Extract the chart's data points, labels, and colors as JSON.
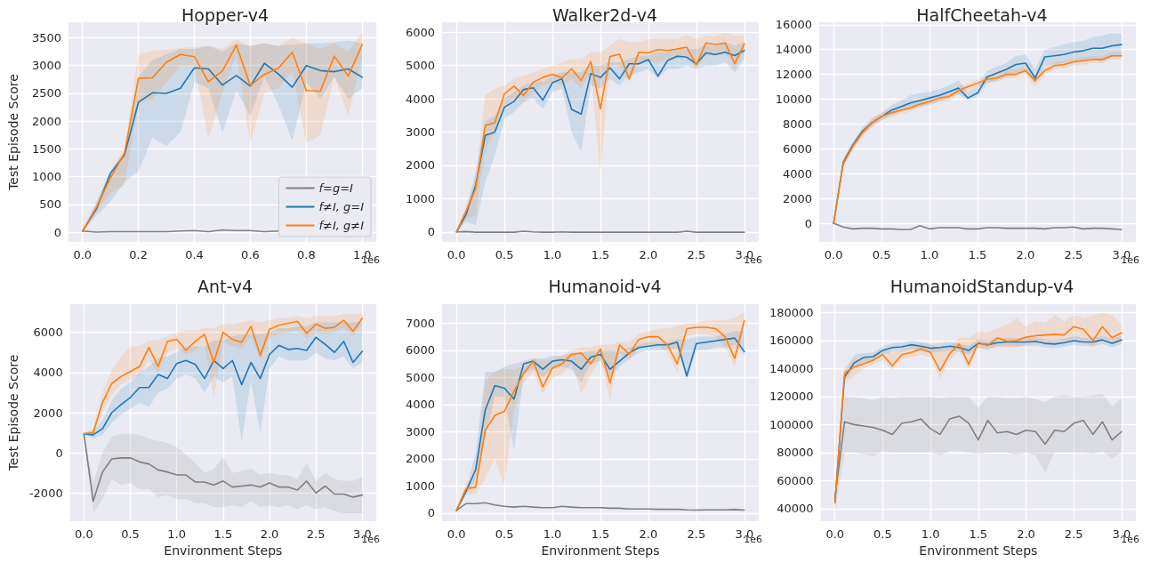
{
  "chart_data": [
    {
      "type": "line",
      "title": "Hopper-v4",
      "ylabel": "Test Episode Score",
      "annotations": [
        "1e6"
      ],
      "legend": "bottom right",
      "grid": true,
      "marker": "none",
      "line_style": "solid",
      "xlim": [
        -0.05,
        1.05
      ],
      "xticks": [
        {
          "value": 0,
          "label": "0.0"
        },
        {
          "value": 0.2,
          "label": "0.2"
        },
        {
          "value": 0.4,
          "label": "0.4"
        },
        {
          "value": 0.6,
          "label": "0.6"
        },
        {
          "value": 0.8,
          "label": "0.8"
        },
        {
          "value": 1,
          "label": "1.0"
        }
      ],
      "ylim": [
        -175,
        3780
      ],
      "yticks": [
        0,
        500,
        1000,
        1500,
        2000,
        2500,
        3000,
        3500
      ],
      "x": [
        0,
        0.05,
        0.1,
        0.15,
        0.2,
        0.25,
        0.3,
        0.35,
        0.4,
        0.45,
        0.5,
        0.55,
        0.6,
        0.65,
        0.7,
        0.75,
        0.8,
        0.85,
        0.9,
        0.95,
        1
      ],
      "series": [
        {
          "name": "f=g=I",
          "color": "#7f7f7f",
          "values": [
            20,
            0,
            10,
            10,
            10,
            10,
            10,
            20,
            30,
            10,
            40,
            30,
            30,
            10,
            20,
            null,
            null,
            null,
            null,
            null,
            null
          ]
        },
        {
          "name": "f≠I, g=I",
          "color": "#1f77b4",
          "values": [
            20,
            420,
            1060,
            1390,
            2340,
            2510,
            2500,
            2590,
            2960,
            2940,
            2650,
            2820,
            2630,
            3040,
            2850,
            2610,
            3000,
            2910,
            2890,
            2940,
            2790
          ],
          "lower": [
            0,
            300,
            550,
            900,
            1100,
            1700,
            1550,
            1800,
            2700,
            2600,
            1800,
            2550,
            2100,
            2800,
            2300,
            1650,
            2700,
            2400,
            2800,
            2400,
            2600
          ],
          "upper": [
            40,
            550,
            1100,
            1450,
            2800,
            3100,
            3200,
            3300,
            3300,
            3350,
            3250,
            3400,
            3350,
            3400,
            3350,
            3380,
            3400,
            3400,
            3420,
            3450,
            3400
          ]
        },
        {
          "name": "f≠I, g≠I",
          "color": "#ff7f0e",
          "values": [
            20,
            450,
            980,
            1420,
            2770,
            2780,
            3060,
            3200,
            3160,
            2710,
            2900,
            3370,
            2640,
            2840,
            2950,
            3240,
            2550,
            2540,
            3170,
            2810,
            3380
          ],
          "lower": [
            0,
            350,
            700,
            850,
            2300,
            2400,
            2700,
            3000,
            3000,
            1700,
            2500,
            3200,
            1600,
            2500,
            2600,
            2900,
            1600,
            1750,
            2800,
            2100,
            3150
          ],
          "upper": [
            40,
            500,
            1100,
            1500,
            3200,
            3270,
            3280,
            3320,
            3330,
            3360,
            3300,
            3470,
            3350,
            3400,
            3350,
            3500,
            3400,
            3300,
            3400,
            3250,
            3600
          ]
        }
      ]
    },
    {
      "type": "line",
      "title": "Walker2d-v4",
      "annotations": [
        "1e6"
      ],
      "grid": true,
      "marker": "none",
      "line_style": "solid",
      "xlim": [
        -0.15,
        3.15
      ],
      "xticks": [
        {
          "value": 0,
          "label": "0.0"
        },
        {
          "value": 0.5,
          "label": "0.5"
        },
        {
          "value": 1,
          "label": "1.0"
        },
        {
          "value": 1.5,
          "label": "1.5"
        },
        {
          "value": 2,
          "label": "2.0"
        },
        {
          "value": 2.5,
          "label": "2.5"
        },
        {
          "value": 3,
          "label": "3.0"
        }
      ],
      "ylim": [
        -300,
        6300
      ],
      "yticks": [
        0,
        1000,
        2000,
        3000,
        4000,
        5000,
        6000
      ],
      "x": [
        0,
        0.1,
        0.2,
        0.3,
        0.4,
        0.5,
        0.6,
        0.7,
        0.8,
        0.9,
        1,
        1.1,
        1.2,
        1.3,
        1.4,
        1.5,
        1.6,
        1.7,
        1.8,
        1.9,
        2,
        2.1,
        2.2,
        2.3,
        2.4,
        2.5,
        2.6,
        2.7,
        2.8,
        2.9,
        3
      ],
      "series": [
        {
          "color": "#7f7f7f",
          "values": [
            0,
            10,
            -10,
            -10,
            -10,
            -10,
            -10,
            20,
            0,
            -10,
            -10,
            0,
            -10,
            -10,
            -10,
            -10,
            -10,
            -10,
            -10,
            -10,
            -10,
            -10,
            -10,
            -10,
            20,
            -10,
            -10,
            -10,
            -10,
            -10,
            -10
          ]
        },
        {
          "color": "#1f77b4",
          "values": [
            0,
            520,
            1400,
            2900,
            3000,
            3750,
            3920,
            4280,
            4330,
            3960,
            4480,
            4600,
            3680,
            3540,
            4760,
            4640,
            4930,
            4600,
            5050,
            5050,
            5180,
            4680,
            5150,
            5280,
            5250,
            5050,
            5380,
            5330,
            5400,
            5300,
            5450
          ],
          "lower": [
            0,
            300,
            200,
            1500,
            2300,
            3400,
            3600,
            3900,
            4000,
            3700,
            4200,
            4300,
            3000,
            2400,
            4400,
            4300,
            4600,
            4400,
            4700,
            4800,
            4900,
            4600,
            4900,
            4900,
            5000,
            4900,
            5000,
            5000,
            5100,
            4800,
            5200
          ],
          "upper": [
            50,
            700,
            1800,
            3300,
            3500,
            4000,
            4200,
            4400,
            4500,
            4500,
            4700,
            4800,
            4800,
            4800,
            5000,
            5000,
            5100,
            5100,
            5200,
            5300,
            5300,
            5400,
            5400,
            5500,
            5500,
            5500,
            5600,
            5600,
            5700,
            5600,
            5700
          ]
        },
        {
          "color": "#ff7f0e",
          "values": [
            0,
            620,
            1300,
            3200,
            3280,
            4150,
            4380,
            4100,
            4500,
            4640,
            4740,
            4630,
            4900,
            4550,
            5120,
            3700,
            5270,
            5340,
            4600,
            5400,
            5380,
            5480,
            5450,
            5500,
            5550,
            5020,
            5680,
            5630,
            5680,
            5060,
            5650
          ],
          "lower": [
            0,
            400,
            500,
            2500,
            3000,
            3800,
            4000,
            3900,
            4200,
            4400,
            4500,
            4400,
            4600,
            4300,
            4800,
            1800,
            5000,
            5000,
            4500,
            5100,
            5100,
            5100,
            5200,
            5200,
            5300,
            4900,
            5300,
            5300,
            5400,
            4900,
            5400
          ],
          "upper": [
            50,
            750,
            1600,
            4100,
            4300,
            4400,
            4600,
            4700,
            4800,
            4900,
            5000,
            5100,
            5200,
            5200,
            5400,
            5400,
            5600,
            5800,
            5700,
            5700,
            5800,
            5800,
            5800,
            5800,
            5900,
            5800,
            5900,
            5900,
            6000,
            5900,
            5900
          ]
        }
      ]
    },
    {
      "type": "line",
      "title": "HalfCheetah-v4",
      "annotations": [
        "1e6"
      ],
      "grid": true,
      "marker": "none",
      "line_style": "solid",
      "xlim": [
        -0.15,
        3.15
      ],
      "xticks": [
        {
          "value": 0,
          "label": "0.0"
        },
        {
          "value": 0.5,
          "label": "0.5"
        },
        {
          "value": 1,
          "label": "1.0"
        },
        {
          "value": 1.5,
          "label": "1.5"
        },
        {
          "value": 2,
          "label": "2.0"
        },
        {
          "value": 2.5,
          "label": "2.5"
        },
        {
          "value": 3,
          "label": "3.0"
        }
      ],
      "ylim": [
        -1500,
        16200
      ],
      "yticks": [
        0,
        2000,
        4000,
        6000,
        8000,
        10000,
        12000,
        14000,
        16000
      ],
      "x": [
        0,
        0.1,
        0.2,
        0.3,
        0.4,
        0.5,
        0.6,
        0.7,
        0.8,
        0.9,
        1,
        1.1,
        1.2,
        1.3,
        1.4,
        1.5,
        1.6,
        1.7,
        1.8,
        1.9,
        2,
        2.1,
        2.2,
        2.3,
        2.4,
        2.5,
        2.6,
        2.7,
        2.8,
        2.9,
        3
      ],
      "series": [
        {
          "color": "#7f7f7f",
          "values": [
            0,
            -300,
            -450,
            -400,
            -400,
            -450,
            -450,
            -500,
            -500,
            -200,
            -450,
            -350,
            -350,
            -350,
            -450,
            -450,
            -350,
            -350,
            -400,
            -400,
            -400,
            -400,
            -450,
            -350,
            -350,
            -300,
            -450,
            -400,
            -400,
            -450,
            -500
          ]
        },
        {
          "color": "#1f77b4",
          "values": [
            0,
            4900,
            6300,
            7400,
            8100,
            8600,
            9100,
            9400,
            9700,
            9900,
            10100,
            10300,
            10600,
            10900,
            10100,
            10500,
            11800,
            12100,
            12400,
            12800,
            12900,
            11700,
            13400,
            13500,
            13600,
            13800,
            13900,
            14100,
            14100,
            14300,
            14400
          ],
          "lower": [
            0,
            4600,
            6000,
            7100,
            7800,
            8300,
            8700,
            9000,
            9200,
            9400,
            9600,
            9800,
            10100,
            10400,
            9900,
            10200,
            11300,
            11500,
            11800,
            12100,
            12200,
            11300,
            12700,
            12800,
            12900,
            13000,
            13100,
            13200,
            13000,
            13400,
            13400
          ],
          "upper": [
            0,
            5200,
            6600,
            7700,
            8400,
            8900,
            9500,
            9900,
            10300,
            10500,
            10600,
            10800,
            11100,
            11500,
            10600,
            11000,
            12300,
            12600,
            12900,
            13500,
            13600,
            12400,
            14000,
            14200,
            14400,
            14600,
            14700,
            15000,
            15100,
            15300,
            15300
          ]
        },
        {
          "color": "#ff7f0e",
          "values": [
            0,
            4800,
            6200,
            7300,
            8100,
            8600,
            8900,
            9100,
            9300,
            9600,
            9800,
            10100,
            10200,
            10700,
            11000,
            11300,
            11600,
            11700,
            12000,
            12000,
            12300,
            11500,
            12300,
            12700,
            12800,
            13000,
            13100,
            13200,
            13200,
            13500,
            13500
          ],
          "lower": [
            0,
            4500,
            5900,
            7000,
            7800,
            8300,
            8600,
            8800,
            9000,
            9300,
            9500,
            9800,
            9800,
            10400,
            10700,
            11000,
            11300,
            11400,
            11700,
            11700,
            12000,
            11000,
            12000,
            12400,
            12500,
            12700,
            12800,
            12900,
            12900,
            13200,
            13200
          ],
          "upper": [
            0,
            5100,
            6500,
            7600,
            8500,
            8900,
            9200,
            9400,
            9600,
            9900,
            10100,
            10400,
            10500,
            11000,
            11300,
            11600,
            11900,
            12100,
            12400,
            12400,
            12600,
            12000,
            12600,
            13000,
            13100,
            13300,
            13400,
            13500,
            13500,
            13800,
            13800
          ]
        }
      ]
    },
    {
      "type": "line",
      "title": "Ant-v4",
      "xlabel": "Environment Steps",
      "ylabel": "Test Episode Score",
      "annotations": [
        "1e6"
      ],
      "grid": true,
      "marker": "none",
      "line_style": "solid",
      "xlim": [
        -0.15,
        3.15
      ],
      "xticks": [
        {
          "value": 0,
          "label": "0.0"
        },
        {
          "value": 0.5,
          "label": "0.5"
        },
        {
          "value": 1,
          "label": "1.0"
        },
        {
          "value": 1.5,
          "label": "1.5"
        },
        {
          "value": 2,
          "label": "2.0"
        },
        {
          "value": 2.5,
          "label": "2.5"
        },
        {
          "value": 3,
          "label": "3.0"
        }
      ],
      "ylim": [
        -3400,
        7400
      ],
      "yticks": [
        -2000,
        0,
        2000,
        4000,
        6000
      ],
      "x": [
        0,
        0.1,
        0.2,
        0.3,
        0.4,
        0.5,
        0.6,
        0.7,
        0.8,
        0.9,
        1,
        1.1,
        1.2,
        1.3,
        1.4,
        1.5,
        1.6,
        1.7,
        1.8,
        1.9,
        2,
        2.1,
        2.2,
        2.3,
        2.4,
        2.5,
        2.6,
        2.7,
        2.8,
        2.9,
        3
      ],
      "series": [
        {
          "color": "#7f7f7f",
          "values": [
            950,
            -2400,
            -950,
            -300,
            -250,
            -250,
            -450,
            -550,
            -850,
            -950,
            -1100,
            -1100,
            -1450,
            -1450,
            -1600,
            -1400,
            -1700,
            -1650,
            -1600,
            -1700,
            -1500,
            -1700,
            -1700,
            -1850,
            -1400,
            -2000,
            -1650,
            -2050,
            -2050,
            -2200,
            -2100
          ],
          "lower": [
            900,
            -3000,
            -2300,
            -1300,
            -1600,
            -1500,
            -1800,
            -1800,
            -2200,
            -2100,
            -2300,
            -2300,
            -2500,
            -2500,
            -2700,
            -2700,
            -2600,
            -2700,
            -2400,
            -2700,
            -2600,
            -2700,
            -2600,
            -2800,
            -2600,
            -2800,
            -2700,
            -2900,
            -3000,
            -3000,
            -3000
          ],
          "upper": [
            1000,
            -1500,
            0,
            800,
            950,
            950,
            900,
            700,
            600,
            500,
            300,
            -100,
            -500,
            -1000,
            -800,
            -200,
            -1000,
            -900,
            -800,
            -1100,
            -1000,
            -1100,
            -1100,
            -1300,
            -500,
            -1400,
            -1000,
            -1300,
            -1400,
            -1400,
            -1200
          ]
        },
        {
          "color": "#1f77b4",
          "values": [
            950,
            900,
            1200,
            2000,
            2400,
            2750,
            3250,
            3250,
            3900,
            3700,
            4450,
            4600,
            4400,
            3700,
            4600,
            4200,
            4600,
            3400,
            4500,
            3700,
            4900,
            5350,
            5150,
            5200,
            5100,
            5750,
            5400,
            5000,
            5550,
            4500,
            5050
          ],
          "lower": [
            900,
            700,
            900,
            1500,
            1900,
            2200,
            2500,
            2300,
            3000,
            3200,
            3700,
            3900,
            3700,
            3000,
            3800,
            3500,
            3800,
            600,
            3600,
            1000,
            4200,
            4800,
            4600,
            4600,
            4600,
            5000,
            4700,
            4600,
            4800,
            4200,
            4500
          ],
          "upper": [
            1000,
            1100,
            1600,
            2600,
            3200,
            3500,
            4000,
            4300,
            4700,
            4800,
            5000,
            5300,
            5300,
            5300,
            5600,
            5600,
            5800,
            5900,
            5900,
            5900,
            6000,
            6200,
            6200,
            6300,
            6300,
            6500,
            6500,
            6500,
            6500,
            6500,
            6500
          ]
        },
        {
          "color": "#ff7f0e",
          "values": [
            960,
            1000,
            2500,
            3450,
            3800,
            4050,
            4300,
            5250,
            4300,
            5550,
            5650,
            5100,
            5550,
            5900,
            4500,
            6000,
            5650,
            5500,
            6300,
            4850,
            6150,
            6350,
            6450,
            6550,
            5950,
            6400,
            6200,
            6250,
            6600,
            6050,
            6700
          ],
          "lower": [
            900,
            800,
            2000,
            2900,
            3400,
            3600,
            3900,
            4600,
            4000,
            5000,
            5200,
            4900,
            5100,
            5400,
            2800,
            5500,
            5300,
            5200,
            5800,
            4600,
            5700,
            5900,
            6000,
            6100,
            5700,
            6000,
            5900,
            6000,
            6200,
            5800,
            6400
          ],
          "upper": [
            1000,
            1200,
            3000,
            4100,
            4800,
            5300,
            5300,
            5600,
            5600,
            5800,
            6000,
            6100,
            6100,
            6200,
            6200,
            6400,
            6400,
            6500,
            6600,
            6500,
            6600,
            6700,
            6700,
            6800,
            6700,
            6800,
            6800,
            6800,
            6900,
            6900,
            6900
          ]
        }
      ]
    },
    {
      "type": "line",
      "title": "Humanoid-v4",
      "xlabel": "Environment Steps",
      "annotations": [
        "1e6"
      ],
      "grid": true,
      "marker": "none",
      "line_style": "solid",
      "xlim": [
        -0.15,
        3.15
      ],
      "xticks": [
        {
          "value": 0,
          "label": "0.0"
        },
        {
          "value": 0.5,
          "label": "0.5"
        },
        {
          "value": 1,
          "label": "1.0"
        },
        {
          "value": 1.5,
          "label": "1.5"
        },
        {
          "value": 2,
          "label": "2.0"
        },
        {
          "value": 2.5,
          "label": "2.5"
        },
        {
          "value": 3,
          "label": "3.0"
        }
      ],
      "ylim": [
        -300,
        7700
      ],
      "yticks": [
        0,
        1000,
        2000,
        3000,
        4000,
        5000,
        6000,
        7000
      ],
      "x": [
        0,
        0.1,
        0.2,
        0.3,
        0.4,
        0.5,
        0.6,
        0.7,
        0.8,
        0.9,
        1,
        1.1,
        1.2,
        1.3,
        1.4,
        1.5,
        1.6,
        1.7,
        1.8,
        1.9,
        2,
        2.1,
        2.2,
        2.3,
        2.4,
        2.5,
        2.6,
        2.7,
        2.8,
        2.9,
        3
      ],
      "series": [
        {
          "color": "#7f7f7f",
          "values": [
            100,
            350,
            350,
            380,
            300,
            250,
            220,
            250,
            220,
            200,
            200,
            250,
            220,
            200,
            200,
            200,
            180,
            180,
            150,
            150,
            150,
            140,
            140,
            140,
            120,
            110,
            120,
            120,
            120,
            130,
            110
          ]
        },
        {
          "color": "#1f77b4",
          "values": [
            100,
            800,
            1600,
            3800,
            4700,
            4600,
            4200,
            5500,
            5600,
            5300,
            5600,
            5650,
            5600,
            5300,
            5750,
            5850,
            5300,
            5600,
            5900,
            6100,
            6150,
            6200,
            6200,
            6300,
            5050,
            6250,
            6300,
            6350,
            6400,
            6450,
            5950
          ],
          "lower": [
            100,
            700,
            1200,
            2800,
            4300,
            4300,
            2300,
            5100,
            5300,
            5000,
            5300,
            5400,
            5300,
            4800,
            5500,
            5600,
            5000,
            5400,
            5700,
            5900,
            6000,
            6000,
            6000,
            6100,
            4900,
            6000,
            6000,
            6100,
            6100,
            6200,
            5800
          ],
          "upper": [
            150,
            900,
            2200,
            5200,
            5200,
            5400,
            5500,
            5600,
            5700,
            5700,
            5800,
            5800,
            5900,
            5900,
            6000,
            6000,
            6000,
            6000,
            6100,
            6200,
            6300,
            6300,
            6300,
            6400,
            6400,
            6500,
            6500,
            6500,
            6600,
            6700,
            6700
          ]
        },
        {
          "color": "#ff7f0e",
          "values": [
            100,
            900,
            950,
            3050,
            3600,
            3750,
            4500,
            5150,
            5600,
            4650,
            5350,
            5500,
            5850,
            5900,
            5500,
            6050,
            4800,
            6200,
            5850,
            6400,
            6500,
            6500,
            6200,
            5500,
            6800,
            6850,
            6850,
            6800,
            6500,
            5700,
            7100
          ],
          "lower": [
            100,
            700,
            700,
            1300,
            2000,
            1000,
            3800,
            4800,
            5200,
            4400,
            5000,
            5100,
            5500,
            4400,
            5100,
            5700,
            4200,
            5900,
            5600,
            6100,
            6200,
            6200,
            5900,
            5200,
            6500,
            6600,
            6600,
            6500,
            6100,
            5400,
            6800
          ],
          "upper": [
            150,
            1100,
            1300,
            4900,
            5200,
            5300,
            5300,
            5400,
            5700,
            5600,
            5700,
            5800,
            6000,
            6100,
            6100,
            6200,
            6200,
            6300,
            6300,
            6600,
            6700,
            6800,
            6800,
            6900,
            7000,
            7000,
            7100,
            7100,
            7100,
            7200,
            7400
          ]
        }
      ]
    },
    {
      "type": "line",
      "title": "HumanoidStandup-v4",
      "xlabel": "Environment Steps",
      "annotations": [
        "1e6"
      ],
      "grid": true,
      "marker": "none",
      "line_style": "solid",
      "xlim": [
        -0.15,
        3.15
      ],
      "xticks": [
        {
          "value": 0,
          "label": "0.0"
        },
        {
          "value": 0.5,
          "label": "0.5"
        },
        {
          "value": 1,
          "label": "1.0"
        },
        {
          "value": 1.5,
          "label": "1.5"
        },
        {
          "value": 2,
          "label": "2.0"
        },
        {
          "value": 2.5,
          "label": "2.5"
        },
        {
          "value": 3,
          "label": "3.0"
        }
      ],
      "ylim": [
        31000,
        186000
      ],
      "yticks": [
        40000,
        60000,
        80000,
        100000,
        120000,
        140000,
        160000,
        180000
      ],
      "x": [
        0,
        0.1,
        0.2,
        0.3,
        0.4,
        0.5,
        0.6,
        0.7,
        0.8,
        0.9,
        1,
        1.1,
        1.2,
        1.3,
        1.4,
        1.5,
        1.6,
        1.7,
        1.8,
        1.9,
        2,
        2.1,
        2.2,
        2.3,
        2.4,
        2.5,
        2.6,
        2.7,
        2.8,
        2.9,
        3
      ],
      "series": [
        {
          "color": "#7f7f7f",
          "values": [
            48000,
            102000,
            100000,
            99000,
            98000,
            96000,
            93000,
            101000,
            102000,
            104000,
            97000,
            93000,
            104000,
            106000,
            101000,
            89000,
            103000,
            94000,
            95000,
            93000,
            96000,
            95000,
            86000,
            96000,
            95000,
            101000,
            103000,
            93000,
            102000,
            89000,
            95000
          ],
          "lower": [
            37000,
            80000,
            80000,
            79000,
            77000,
            81000,
            80000,
            80000,
            80000,
            80000,
            80000,
            78000,
            81000,
            81000,
            80000,
            79000,
            80000,
            80000,
            80000,
            78000,
            80000,
            78000,
            66000,
            80000,
            80000,
            80000,
            80000,
            79000,
            81000,
            76000,
            80000
          ],
          "upper": [
            50000,
            120000,
            120000,
            119000,
            117000,
            120000,
            119000,
            120000,
            120000,
            120000,
            120000,
            119000,
            120000,
            120000,
            120000,
            112000,
            120000,
            120000,
            119000,
            119000,
            120000,
            118000,
            116000,
            120000,
            121000,
            120000,
            120000,
            121000,
            122000,
            113000,
            119000
          ]
        },
        {
          "color": "#1f77b4",
          "values": [
            45000,
            134000,
            144000,
            148000,
            148500,
            153000,
            155000,
            155500,
            157000,
            156000,
            154500,
            155000,
            156000,
            155000,
            153000,
            158000,
            157000,
            158500,
            159000,
            159000,
            159000,
            159500,
            158000,
            157500,
            158500,
            160000,
            159000,
            159000,
            160500,
            158000,
            160500
          ],
          "lower": [
            40000,
            131000,
            141000,
            145000,
            145500,
            150000,
            152000,
            152500,
            154000,
            153000,
            151500,
            152000,
            153000,
            152000,
            150000,
            155000,
            154000,
            155500,
            156000,
            156000,
            156000,
            156500,
            155000,
            154500,
            155500,
            157000,
            156000,
            156000,
            157500,
            155000,
            157500
          ],
          "upper": [
            50000,
            137000,
            150000,
            151000,
            151500,
            156000,
            158000,
            158500,
            160000,
            159000,
            157500,
            158000,
            159000,
            158000,
            156000,
            161000,
            160000,
            161500,
            162000,
            162000,
            162000,
            162500,
            161000,
            160500,
            161500,
            163000,
            162000,
            162000,
            163500,
            161000,
            163500
          ]
        },
        {
          "color": "#ff7f0e",
          "values": [
            44000,
            137000,
            141000,
            143500,
            146000,
            150000,
            142000,
            150000,
            151500,
            154000,
            151500,
            138500,
            150500,
            157500,
            143000,
            158500,
            156500,
            162000,
            159500,
            160000,
            162500,
            163500,
            164000,
            164500,
            164000,
            170000,
            168000,
            160000,
            170000,
            162000,
            165500
          ],
          "lower": [
            40000,
            130000,
            135000,
            140000,
            143000,
            146000,
            139000,
            147000,
            148000,
            150000,
            148000,
            133000,
            146000,
            153000,
            139000,
            155000,
            153000,
            156000,
            155000,
            155000,
            157000,
            158000,
            158000,
            158000,
            157000,
            162000,
            160000,
            155000,
            163000,
            157000,
            159000
          ],
          "upper": [
            48000,
            141000,
            147000,
            147000,
            149000,
            153000,
            151000,
            153000,
            156000,
            158000,
            157000,
            155000,
            156000,
            162000,
            162000,
            166000,
            166000,
            169000,
            171000,
            176000,
            170000,
            174000,
            173000,
            178000,
            174000,
            178000,
            176000,
            178000,
            180000,
            178000,
            172000
          ]
        }
      ]
    }
  ]
}
